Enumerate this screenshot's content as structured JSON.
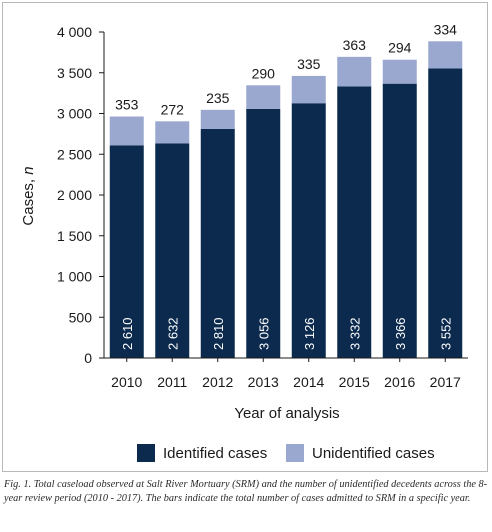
{
  "chart_data": {
    "type": "bar",
    "stacked": true,
    "categories": [
      "2010",
      "2011",
      "2012",
      "2013",
      "2014",
      "2015",
      "2016",
      "2017"
    ],
    "series": [
      {
        "name": "Identified cases",
        "values": [
          2610,
          2632,
          2810,
          3056,
          3126,
          3332,
          3366,
          3552
        ],
        "color": "#0b2a4e"
      },
      {
        "name": "Unidentified cases",
        "values": [
          353,
          272,
          235,
          290,
          335,
          363,
          294,
          334
        ],
        "color": "#9aa8cf"
      }
    ],
    "identified_labels": [
      "2 610",
      "2 632",
      "2 810",
      "3 056",
      "3 126",
      "3 332",
      "3 366",
      "3 552"
    ],
    "unidentified_labels": [
      "353",
      "272",
      "235",
      "290",
      "335",
      "363",
      "294",
      "334"
    ],
    "yticks": [
      0,
      500,
      1000,
      1500,
      2000,
      2500,
      3000,
      3500,
      4000
    ],
    "ytick_labels": [
      "0",
      "500",
      "1 000",
      "1 500",
      "2 000",
      "2 500",
      "3 000",
      "3 500",
      "4 000"
    ],
    "ylim": [
      0,
      4000
    ],
    "xlabel": "Year of analysis",
    "ylabel_main": "Cases, ",
    "ylabel_italic": "n",
    "grid": false,
    "legend_position": "bottom"
  },
  "caption": "Fig. 1. Total caseload observed at Salt River Mortuary (SRM) and the number of unidentified decedents across the 8-year review period (2010 - 2017). The bars indicate the total number of cases admitted to SRM in a specific year."
}
